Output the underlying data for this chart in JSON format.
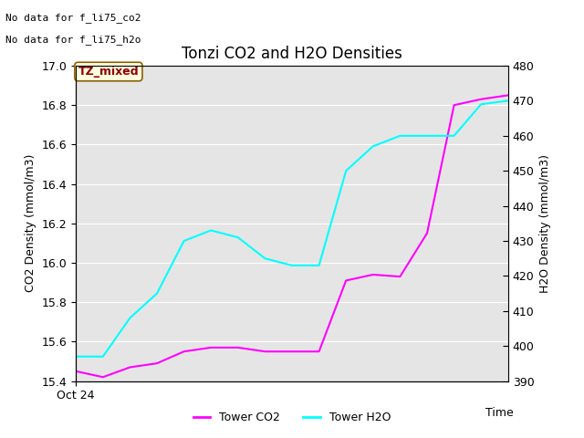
{
  "title": "Tonzi CO2 and H2O Densities",
  "xlabel": "Time",
  "ylabel_left": "CO2 Density (mmol/m3)",
  "ylabel_right": "H2O Density (mmol/m3)",
  "annotation_line1": "No data for f_li75_co2",
  "annotation_line2": "No data for f_li75_h2o",
  "legend_label1": "Tower CO2",
  "legend_label2": "Tower H2O",
  "tz_label": "TZ_mixed",
  "x_tick_label": "Oct 24",
  "co2_color": "#ff00ff",
  "h2o_color": "#00ffff",
  "ylim_left": [
    15.4,
    17.0
  ],
  "ylim_right": [
    390,
    480
  ],
  "background_color": "#e5e5e5",
  "co2_x": [
    0,
    1,
    2,
    3,
    4,
    5,
    6,
    7,
    8,
    9,
    10,
    11,
    12,
    13,
    14,
    15,
    16
  ],
  "co2_y": [
    15.45,
    15.42,
    15.47,
    15.49,
    15.55,
    15.57,
    15.57,
    15.55,
    15.55,
    15.55,
    15.91,
    15.94,
    15.93,
    16.15,
    16.8,
    16.83,
    16.85
  ],
  "h2o_x": [
    0,
    1,
    2,
    3,
    4,
    5,
    6,
    7,
    8,
    9,
    10,
    11,
    12,
    13,
    14,
    15,
    16
  ],
  "h2o_y": [
    397,
    397,
    408,
    415,
    430,
    433,
    431,
    425,
    423,
    423,
    450,
    457,
    460,
    460,
    460,
    469,
    470
  ],
  "yticks_left": [
    15.4,
    15.6,
    15.8,
    16.0,
    16.2,
    16.4,
    16.6,
    16.8,
    17.0
  ],
  "yticks_right": [
    390,
    400,
    410,
    420,
    430,
    440,
    450,
    460,
    470,
    480
  ]
}
